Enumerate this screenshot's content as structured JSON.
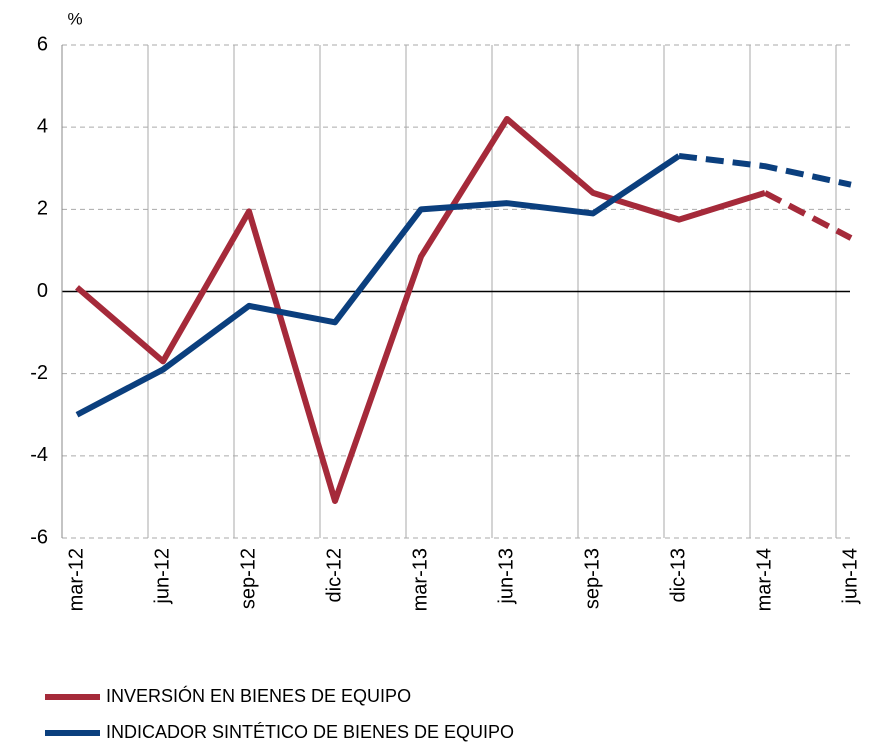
{
  "chart_data": {
    "type": "line",
    "y_unit": "%",
    "categories": [
      "mar-12",
      "jun-12",
      "sep-12",
      "dic-12",
      "mar-13",
      "jun-13",
      "sep-13",
      "dic-13",
      "mar-14",
      "jun-14"
    ],
    "series": [
      {
        "name": "INVERSIÓN EN BIENES DE EQUIPO",
        "color": "#a52a3a",
        "dashed_from": 8,
        "values": [
          0.1,
          -1.7,
          1.95,
          -5.1,
          0.85,
          4.2,
          2.4,
          1.75,
          2.4,
          1.3
        ]
      },
      {
        "name": "INDICADOR SINTÉTICO DE BIENES DE EQUIPO",
        "color": "#0b3f7e",
        "dashed_from": 7,
        "values": [
          -3.0,
          -1.9,
          -0.35,
          -0.75,
          2.0,
          2.15,
          1.9,
          3.3,
          3.05,
          2.6
        ]
      }
    ],
    "ylim": [
      -6,
      6
    ],
    "yticks": [
      -6,
      -4,
      -2,
      0,
      2,
      4,
      6
    ],
    "grid": true
  }
}
